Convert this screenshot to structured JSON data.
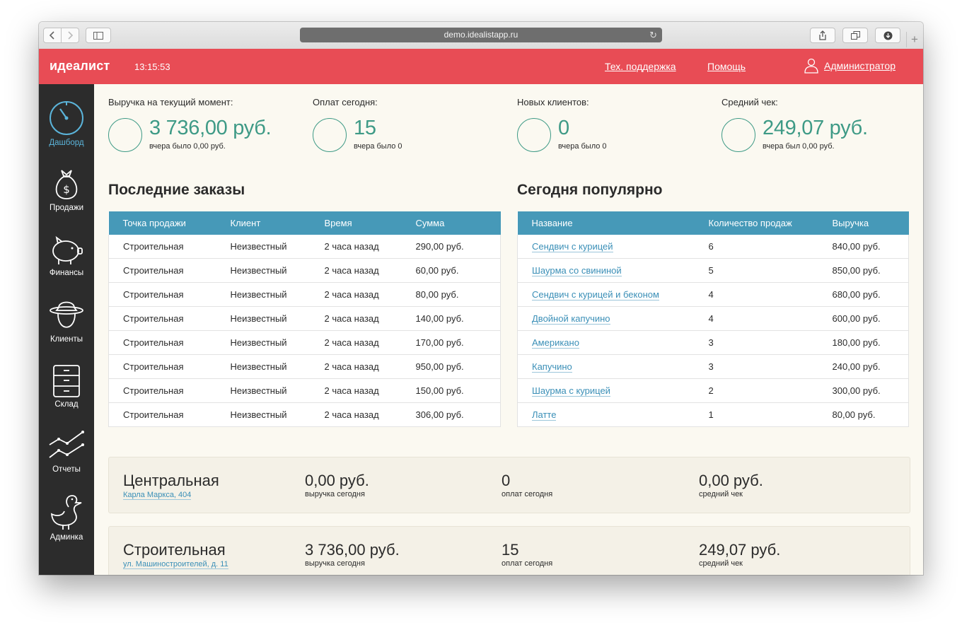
{
  "browser": {
    "url": "demo.idealistapp.ru"
  },
  "header": {
    "logo": "идеалист",
    "time": "13:15:53",
    "links": {
      "support": "Тех. поддержка",
      "help": "Помощь",
      "admin": "Администратор"
    },
    "color": "#e84c55"
  },
  "sidebar": {
    "items": [
      {
        "label": "Дашборд",
        "icon": "speedometer-icon"
      },
      {
        "label": "Продажи",
        "icon": "money-bag-icon"
      },
      {
        "label": "Финансы",
        "icon": "piggy-bank-icon"
      },
      {
        "label": "Клиенты",
        "icon": "hat-person-icon"
      },
      {
        "label": "Склад",
        "icon": "drawers-icon"
      },
      {
        "label": "Отчеты",
        "icon": "line-chart-icon"
      },
      {
        "label": "Админка",
        "icon": "duck-icon"
      }
    ]
  },
  "kpis": [
    {
      "label": "Выручка на текущий момент:",
      "value": "3 736,00 руб.",
      "sub": "вчера было 0,00 руб."
    },
    {
      "label": "Оплат сегодня:",
      "value": "15",
      "sub": "вчера было 0"
    },
    {
      "label": "Новых клиентов:",
      "value": "0",
      "sub": "вчера было 0"
    },
    {
      "label": "Средний чек:",
      "value": "249,07 руб.",
      "sub": "вчера был 0,00 руб."
    }
  ],
  "orders": {
    "title": "Последние заказы",
    "columns": [
      "Точка продажи",
      "Клиент",
      "Время",
      "Сумма"
    ],
    "rows": [
      [
        "Строительная",
        "Неизвестный",
        "2 часа назад",
        "290,00 руб."
      ],
      [
        "Строительная",
        "Неизвестный",
        "2 часа назад",
        "60,00 руб."
      ],
      [
        "Строительная",
        "Неизвестный",
        "2 часа назад",
        "80,00 руб."
      ],
      [
        "Строительная",
        "Неизвестный",
        "2 часа назад",
        "140,00 руб."
      ],
      [
        "Строительная",
        "Неизвестный",
        "2 часа назад",
        "170,00 руб."
      ],
      [
        "Строительная",
        "Неизвестный",
        "2 часа назад",
        "950,00 руб."
      ],
      [
        "Строительная",
        "Неизвестный",
        "2 часа назад",
        "150,00 руб."
      ],
      [
        "Строительная",
        "Неизвестный",
        "2 часа назад",
        "306,00 руб."
      ]
    ]
  },
  "popular": {
    "title": "Сегодня популярно",
    "columns": [
      "Название",
      "Количество продаж",
      "Выручка"
    ],
    "rows": [
      [
        "Сендвич с курицей",
        "6",
        "840,00 руб."
      ],
      [
        "Шаурма со свининой",
        "5",
        "850,00 руб."
      ],
      [
        "Сендвич с курицей и беконом",
        "4",
        "680,00 руб."
      ],
      [
        "Двойной капучино",
        "4",
        "600,00 руб."
      ],
      [
        "Американо",
        "3",
        "180,00 руб."
      ],
      [
        "Капучино",
        "3",
        "240,00 руб."
      ],
      [
        "Шаурма с курицей",
        "2",
        "300,00 руб."
      ],
      [
        "Латте",
        "1",
        "80,00 руб."
      ]
    ]
  },
  "stores": [
    {
      "name": "Центральная",
      "address": "Карла Маркса, 404",
      "revenue": "0,00 руб.",
      "revenue_label": "выручка сегодня",
      "payments": "0",
      "payments_label": "оплат сегодня",
      "avg": "0,00 руб.",
      "avg_label": "средний чек"
    },
    {
      "name": "Строительная",
      "address": "ул. Машиностроителей, д. 11",
      "revenue": "3 736,00 руб.",
      "revenue_label": "выручка сегодня",
      "payments": "15",
      "payments_label": "оплат сегодня",
      "avg": "249,07 руб.",
      "avg_label": "средний чек"
    }
  ]
}
